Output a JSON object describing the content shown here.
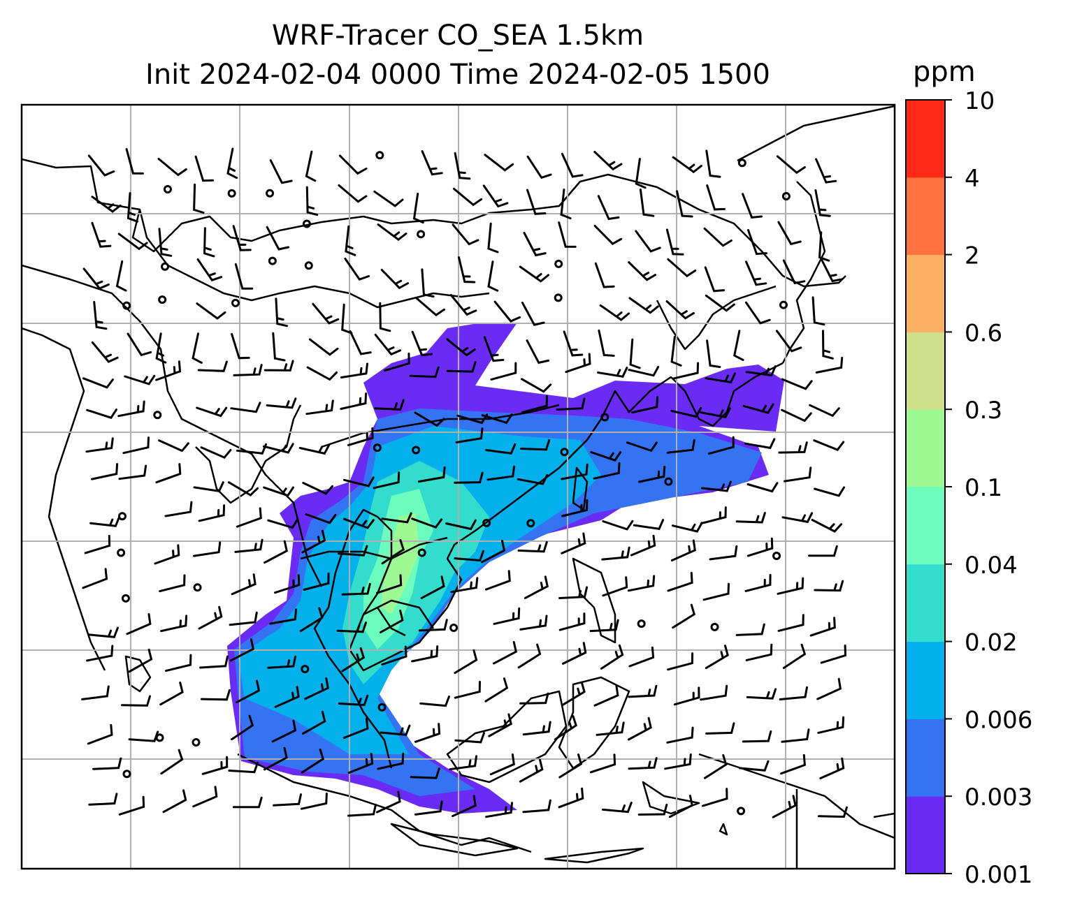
{
  "title_line1": "WRF-Tracer CO_SEA 1.5km",
  "title_line2": "Init 2024-02-04 0000 Time 2024-02-05 1500",
  "colorbar": {
    "unit": "ppm",
    "levels": [
      "0.001",
      "0.003",
      "0.006",
      "0.02",
      "0.04",
      "0.1",
      "0.3",
      "0.6",
      "2",
      "4",
      "10"
    ],
    "colors": [
      "#6a2cf5",
      "#3474f2",
      "#03b0ec",
      "#34dccd",
      "#6bfcbe",
      "#9cf994",
      "#d0e08a",
      "#fdb063",
      "#ff723f",
      "#fe2917"
    ]
  },
  "map": {
    "gridlines": true,
    "wind_barbs": true
  }
}
